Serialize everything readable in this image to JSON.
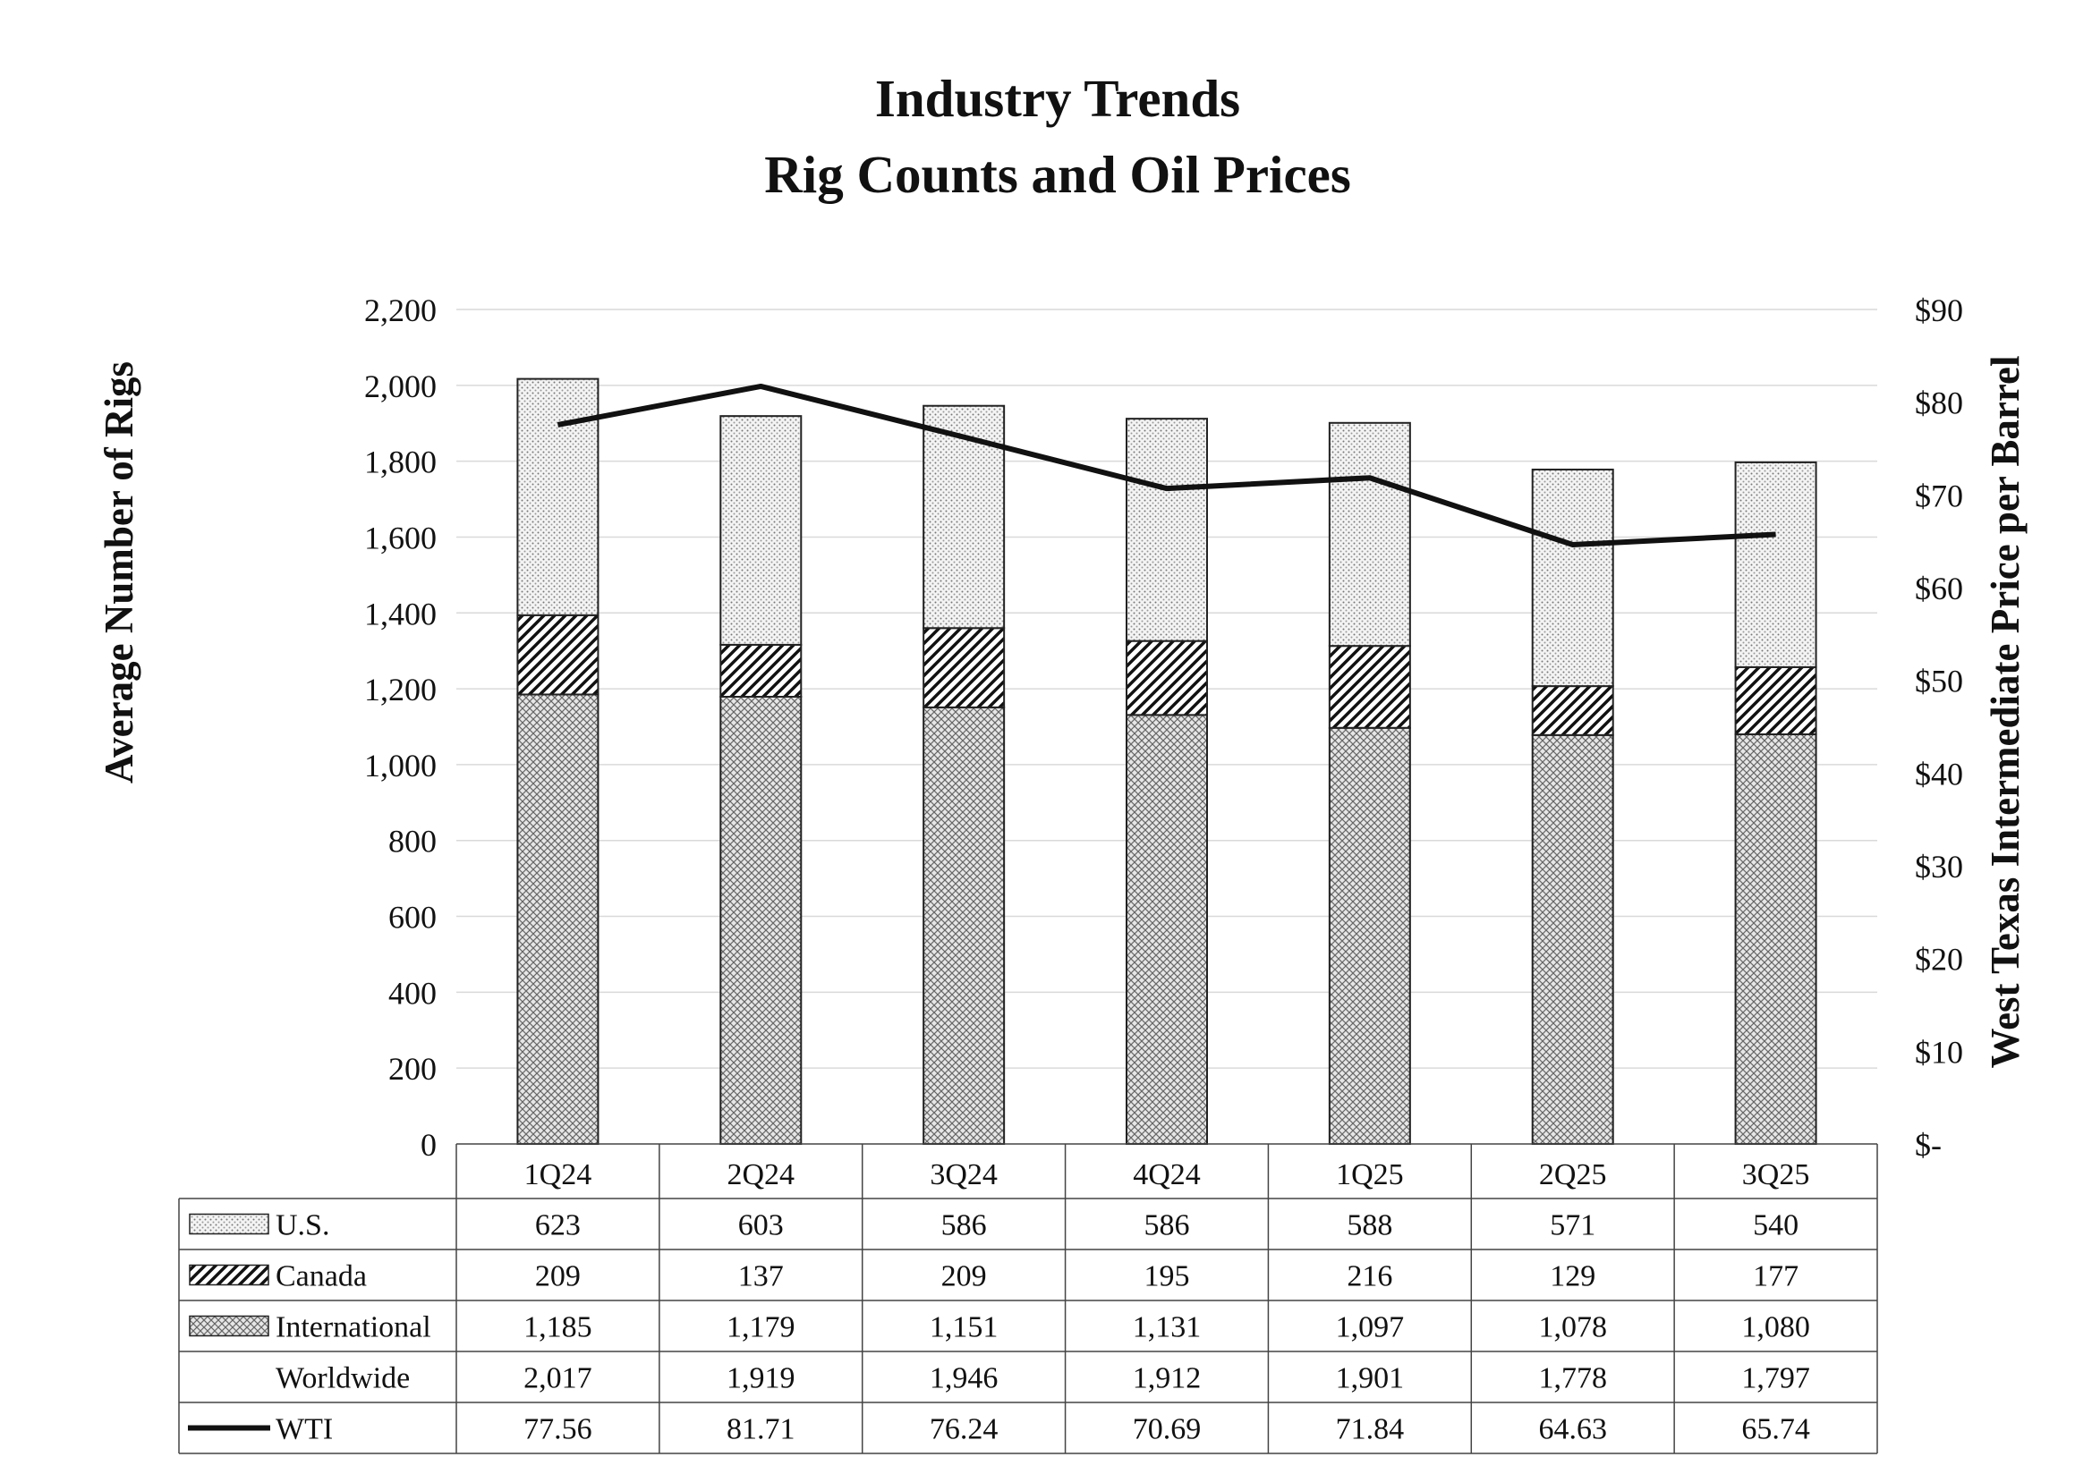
{
  "chart_data": {
    "type": "bar",
    "stacked": true,
    "title": "Industry Trends",
    "subtitle": "Rig Counts and Oil Prices",
    "ylabel": "Average Number of Rigs",
    "y2label": "West Texas Intermediate Price per Barrel",
    "ylim": [
      0,
      2200
    ],
    "y2lim": [
      0,
      90
    ],
    "yticks": [
      "0",
      "200",
      "400",
      "600",
      "800",
      "1,000",
      "1,200",
      "1,400",
      "1,600",
      "1,800",
      "2,000",
      "2,200"
    ],
    "y2ticks": [
      "$-",
      "$10",
      "$20",
      "$30",
      "$40",
      "$50",
      "$60",
      "$70",
      "$80",
      "$90"
    ],
    "categories": [
      "1Q24",
      "2Q24",
      "3Q24",
      "4Q24",
      "1Q25",
      "2Q25",
      "3Q25"
    ],
    "series": [
      {
        "name": "U.S.",
        "values": [
          623,
          603,
          586,
          586,
          588,
          571,
          540
        ],
        "labels": [
          "623",
          "603",
          "586",
          "586",
          "588",
          "571",
          "540"
        ],
        "pattern": "dots",
        "stacked": true
      },
      {
        "name": "Canada",
        "values": [
          209,
          137,
          209,
          195,
          216,
          129,
          177
        ],
        "labels": [
          "209",
          "137",
          "209",
          "195",
          "216",
          "129",
          "177"
        ],
        "pattern": "diagonal",
        "stacked": true
      },
      {
        "name": "International",
        "values": [
          1185,
          1179,
          1151,
          1131,
          1097,
          1078,
          1080
        ],
        "labels": [
          "1,185",
          "1,179",
          "1,151",
          "1,131",
          "1,097",
          "1,078",
          "1,080"
        ],
        "pattern": "crosshatch",
        "stacked": true
      },
      {
        "name": "Worldwide",
        "values": [
          2017,
          1919,
          1946,
          1912,
          1901,
          1778,
          1797
        ],
        "labels": [
          "2,017",
          "1,919",
          "1,946",
          "1,912",
          "1,901",
          "1,778",
          "1,797"
        ],
        "pattern": "none",
        "stacked": false
      },
      {
        "name": "WTI",
        "values": [
          77.56,
          81.71,
          76.24,
          70.69,
          71.84,
          64.63,
          65.74
        ],
        "labels": [
          "77.56",
          "81.71",
          "76.24",
          "70.69",
          "71.84",
          "64.63",
          "65.74"
        ],
        "pattern": "line",
        "axis": "right"
      }
    ],
    "legend": "table-below",
    "grid": true
  }
}
